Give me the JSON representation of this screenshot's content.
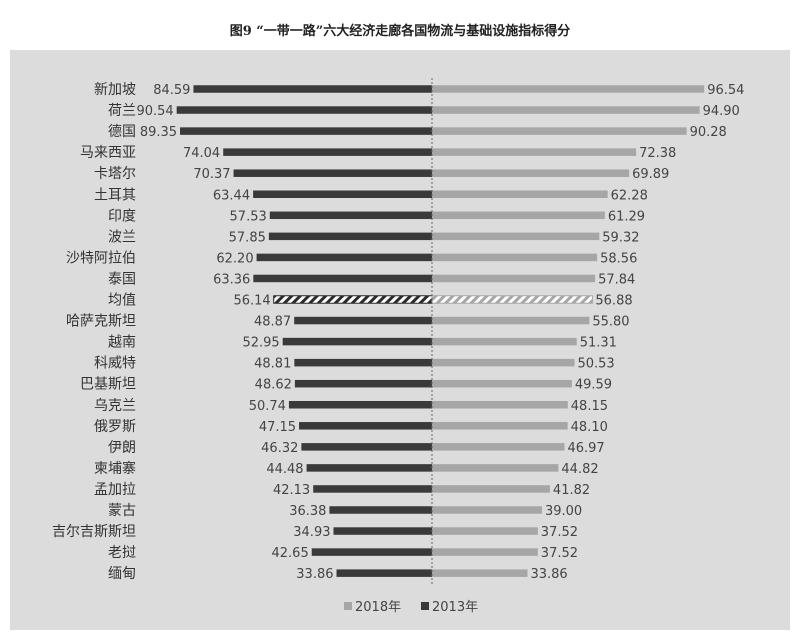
{
  "chart_data": {
    "type": "bar",
    "title": "图9 “一带一路”六大经济走廊各国物流与基础设施指标得分",
    "categories": [
      "新加坡",
      "荷兰",
      "德国",
      "马来西亚",
      "卡塔尔",
      "土耳其",
      "印度",
      "波兰",
      "沙特阿拉伯",
      "泰国",
      "均值",
      "哈萨克斯坦",
      "越南",
      "科威特",
      "巴基斯坦",
      "乌克兰",
      "俄罗斯",
      "伊朗",
      "柬埔寨",
      "孟加拉",
      "蒙古",
      "吉尔吉斯斯坦",
      "老挝",
      "缅甸"
    ],
    "series": [
      {
        "name": "2018年",
        "color": "#a6a6a6",
        "values": [
          96.54,
          94.9,
          90.28,
          72.38,
          69.89,
          62.28,
          61.29,
          59.32,
          58.56,
          57.84,
          56.88,
          55.8,
          51.31,
          50.53,
          49.59,
          48.15,
          48.1,
          46.97,
          44.82,
          41.82,
          39.0,
          37.52,
          37.52,
          33.86
        ],
        "labels": [
          "96.54",
          "94.90",
          "90.28",
          "72.38",
          "69.89",
          "62.28",
          "61.29",
          "59.32",
          "58.56",
          "57.84",
          "56.88",
          "55.80",
          "51.31",
          "50.53",
          "49.59",
          "48.15",
          "48.10",
          "46.97",
          "44.82",
          "41.82",
          "39.00",
          "37.52",
          "37.52",
          "33.86"
        ]
      },
      {
        "name": "2013年",
        "color": "#3a3a3a",
        "values": [
          84.59,
          90.54,
          89.35,
          74.04,
          70.37,
          63.44,
          57.53,
          57.85,
          62.2,
          63.36,
          56.14,
          48.87,
          52.95,
          48.81,
          48.62,
          50.74,
          47.15,
          46.32,
          44.48,
          42.13,
          36.38,
          34.93,
          42.65,
          33.86
        ],
        "labels": [
          "84.59",
          "90.54",
          "89.35",
          "74.04",
          "70.37",
          "63.44",
          "57.53",
          "57.85",
          "62.20",
          "63.36",
          "56.14",
          "48.87",
          "52.95",
          "48.81",
          "48.62",
          "50.74",
          "47.15",
          "46.32",
          "44.48",
          "42.13",
          "36.38",
          "34.93",
          "42.65",
          "33.86"
        ]
      }
    ],
    "highlight_category": "均值",
    "legend_position": "bottom",
    "grid": false
  }
}
